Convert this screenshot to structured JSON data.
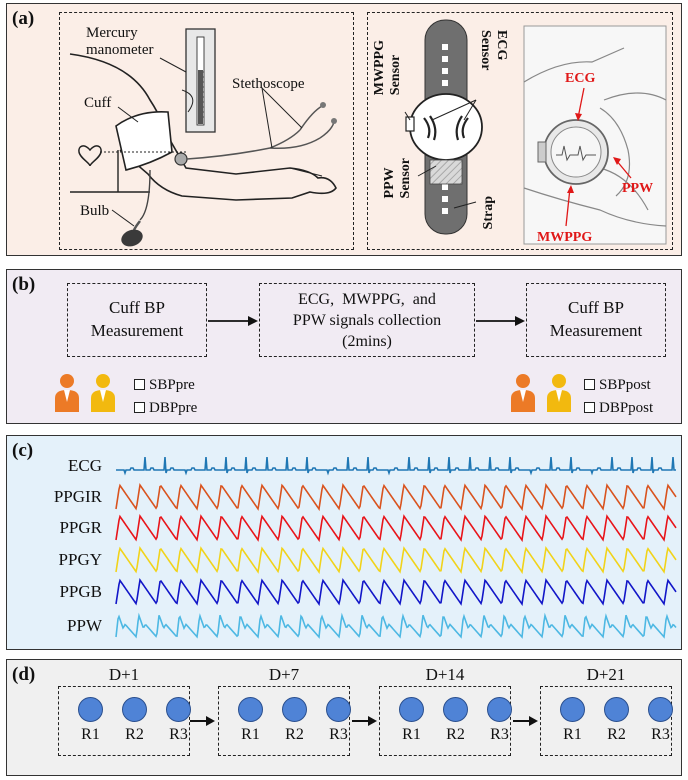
{
  "panel_a": {
    "letter": "(a)",
    "mercury_manometer": "Mercury\nmanometer",
    "stethoscope": "Stethoscope",
    "cuff": "Cuff",
    "bulb": "Bulb",
    "mwppg_sensor": "MWPPG\nSensor",
    "ecg_sensor": "ECG\nSensor",
    "ppw_sensor": "PPW\nSensor",
    "strap": "Strap",
    "photo_ecg": "ECG",
    "photo_ppw": "PPW",
    "photo_mwppg": "MWPPG"
  },
  "panel_b": {
    "letter": "(b)",
    "box1": "Cuff BP\nMeasurement",
    "box2": "ECG,  MWPPG,  and\nPPW signals collection\n(2mins)",
    "box3": "Cuff BP\nMeasurement",
    "sbp_pre": "SBPpre",
    "dbp_pre": "DBPpre",
    "sbp_post": "SBPpost",
    "dbp_post": "DBPpost"
  },
  "panel_c": {
    "letter": "(c)",
    "traces": [
      {
        "label": "ECG",
        "color": "#1f77b4",
        "kind": "ecg"
      },
      {
        "label": "PPGIR",
        "color": "#d9531e",
        "kind": "ppg"
      },
      {
        "label": "PPGR",
        "color": "#e8141a",
        "kind": "ppg"
      },
      {
        "label": "PPGY",
        "color": "#f1d31a",
        "kind": "ppg"
      },
      {
        "label": "PPGB",
        "color": "#1216c8",
        "kind": "ppg"
      },
      {
        "label": "PPW",
        "color": "#4db8e3",
        "kind": "ppw"
      }
    ]
  },
  "panel_d": {
    "letter": "(d)",
    "groups": [
      {
        "day": "D+1",
        "rounds": [
          "R1",
          "R2",
          "R3"
        ]
      },
      {
        "day": "D+7",
        "rounds": [
          "R1",
          "R2",
          "R3"
        ]
      },
      {
        "day": "D+14",
        "rounds": [
          "R1",
          "R2",
          "R3"
        ]
      },
      {
        "day": "D+21",
        "rounds": [
          "R1",
          "R2",
          "R3"
        ]
      }
    ]
  },
  "colors": {
    "panel_a_bg": "#fbeee7",
    "panel_b_bg": "#f1ebf3",
    "panel_c_bg": "#e4f1fa",
    "panel_d_bg": "#f0f0f0",
    "person_orange": "#ec7a26",
    "person_yellow": "#f2b90f",
    "circle_blue": "#4f83d6"
  }
}
